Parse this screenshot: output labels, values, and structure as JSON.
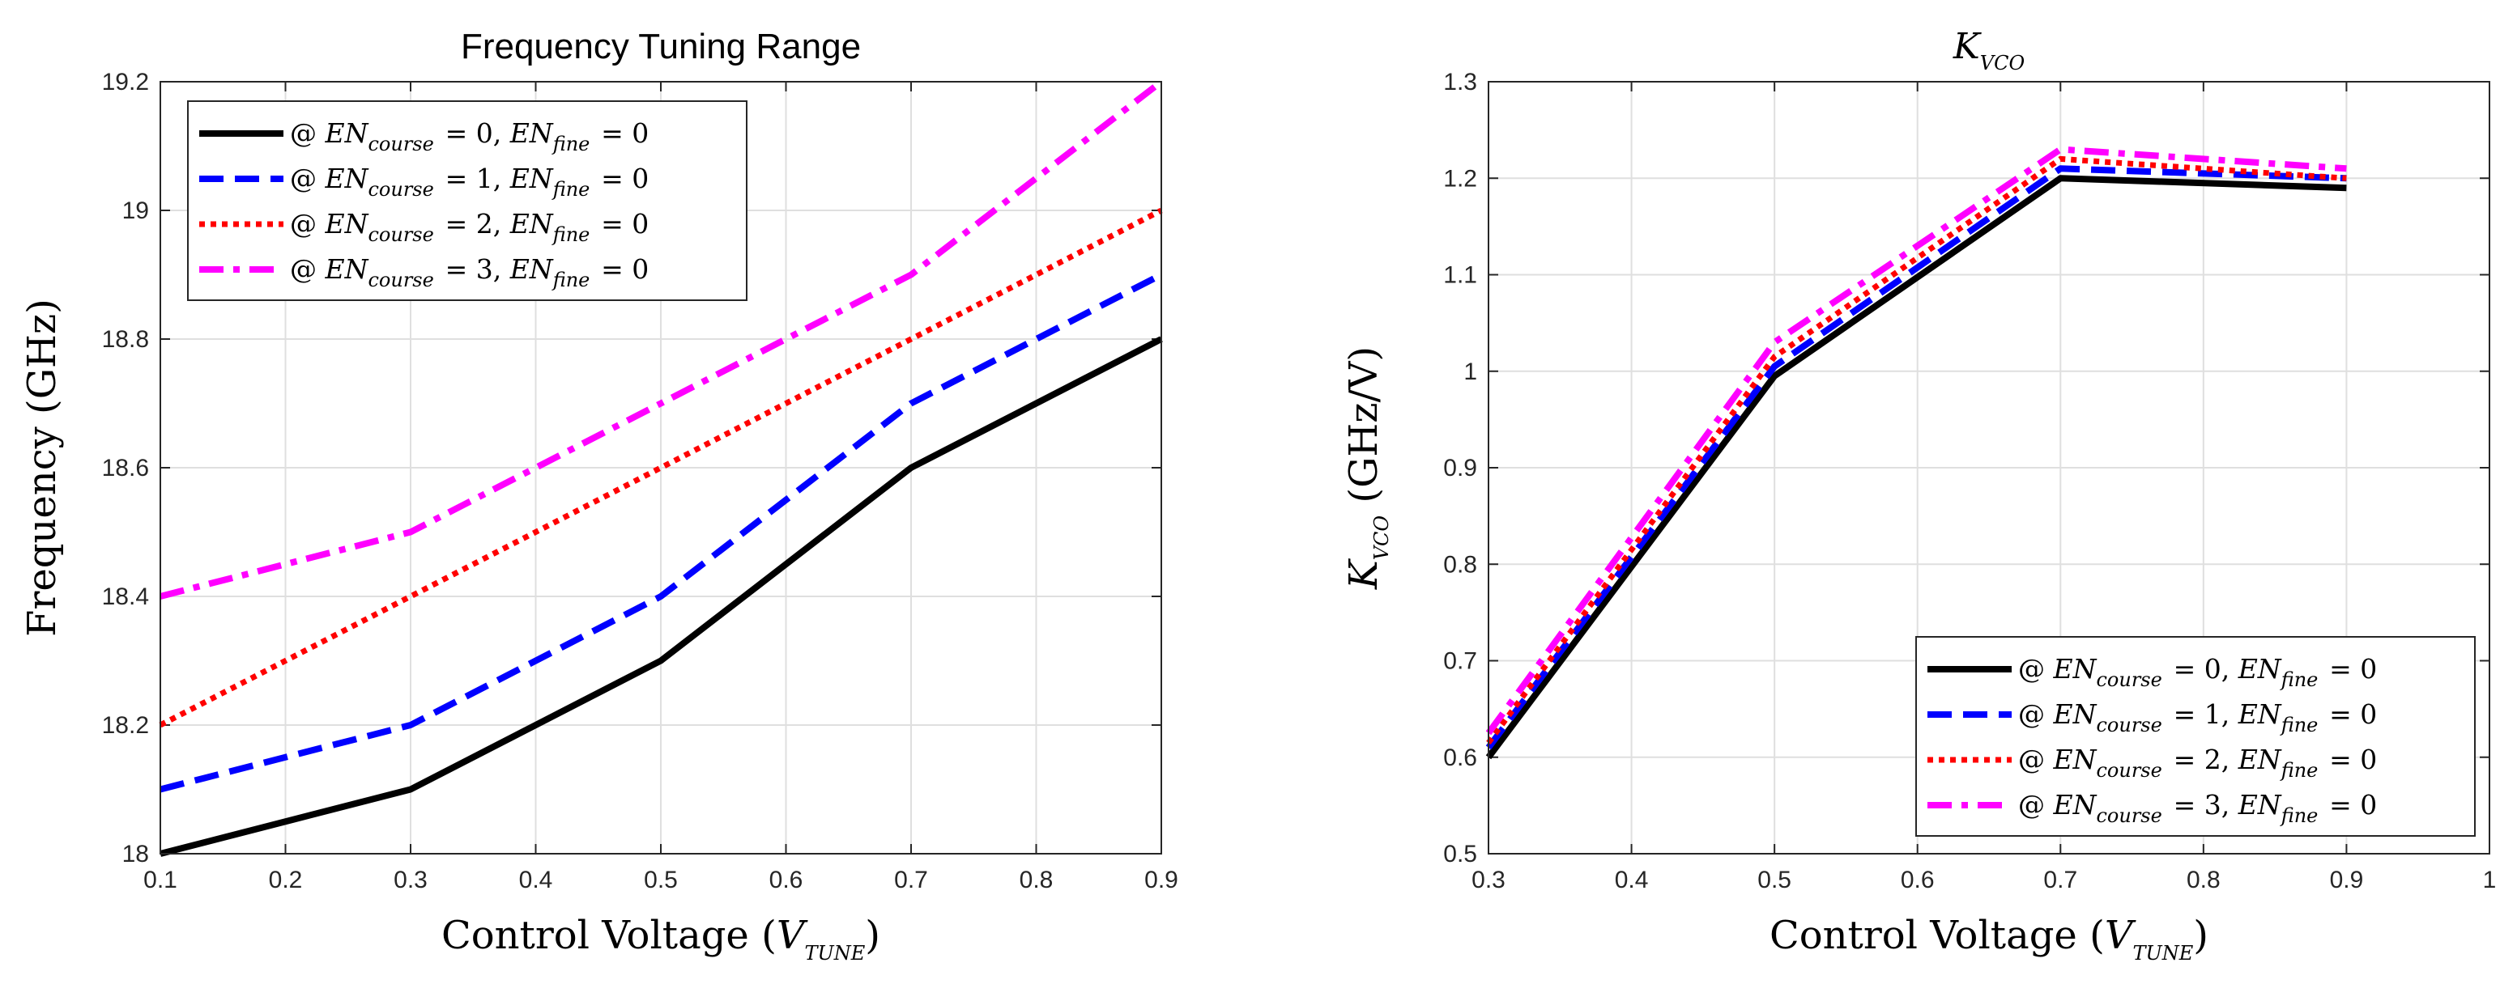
{
  "chart_data": [
    {
      "type": "line",
      "title": "Frequency Tuning Range",
      "xlabel": "Control Voltage (V_TUNE)",
      "ylabel": "Frequency (GHz)",
      "xlim": [
        0.1,
        0.9
      ],
      "ylim": [
        18,
        19.2
      ],
      "xticks": [
        "0.1",
        "0.2",
        "0.3",
        "0.4",
        "0.5",
        "0.6",
        "0.7",
        "0.8",
        "0.9"
      ],
      "yticks": [
        "18",
        "18.2",
        "18.4",
        "18.6",
        "18.8",
        "19",
        "19.2"
      ],
      "grid": true,
      "legend_position": "top-left",
      "x": [
        0.1,
        0.3,
        0.5,
        0.7,
        0.9
      ],
      "series": [
        {
          "name": "@ EN_course = 0, EN_fine = 0",
          "color": "#000000",
          "style": "solid",
          "values": [
            18.0,
            18.1,
            18.3,
            18.6,
            18.8
          ]
        },
        {
          "name": "@ EN_course = 1, EN_fine = 0",
          "color": "#0000ff",
          "style": "dashed",
          "values": [
            18.1,
            18.2,
            18.4,
            18.7,
            18.9
          ]
        },
        {
          "name": "@ EN_course = 2, EN_fine = 0",
          "color": "#ff0000",
          "style": "dotted",
          "values": [
            18.2,
            18.4,
            18.6,
            18.8,
            19.0
          ]
        },
        {
          "name": "@ EN_course = 3, EN_fine = 0",
          "color": "#ff00ff",
          "style": "dashdot",
          "values": [
            18.4,
            18.5,
            18.7,
            18.9,
            19.2
          ]
        }
      ]
    },
    {
      "type": "line",
      "title": "K_VCO",
      "xlabel": "Control Voltage (V_TUNE)",
      "ylabel": "K_VCO (GHz/V)",
      "xlim": [
        0.3,
        1
      ],
      "ylim": [
        0.5,
        1.3
      ],
      "xticks": [
        "0.3",
        "0.4",
        "0.5",
        "0.6",
        "0.7",
        "0.8",
        "0.9",
        "1"
      ],
      "yticks": [
        "0.5",
        "0.6",
        "0.7",
        "0.8",
        "0.9",
        "1",
        "1.1",
        "1.2",
        "1.3"
      ],
      "grid": true,
      "legend_position": "bottom-right",
      "x": [
        0.3,
        0.5,
        0.7,
        0.9
      ],
      "series": [
        {
          "name": "@ EN_course = 0, EN_fine = 0",
          "color": "#000000",
          "style": "solid",
          "values": [
            0.6,
            0.995,
            1.2,
            1.19
          ]
        },
        {
          "name": "@ EN_course = 1, EN_fine = 0",
          "color": "#0000ff",
          "style": "dashed",
          "values": [
            0.61,
            1.005,
            1.21,
            1.2
          ]
        },
        {
          "name": "@ EN_course = 2, EN_fine = 0",
          "color": "#ff0000",
          "style": "dotted",
          "values": [
            0.615,
            1.015,
            1.22,
            1.2
          ]
        },
        {
          "name": "@ EN_course = 3, EN_fine = 0",
          "color": "#ff00ff",
          "style": "dashdot",
          "values": [
            0.625,
            1.03,
            1.23,
            1.21
          ]
        }
      ]
    }
  ]
}
